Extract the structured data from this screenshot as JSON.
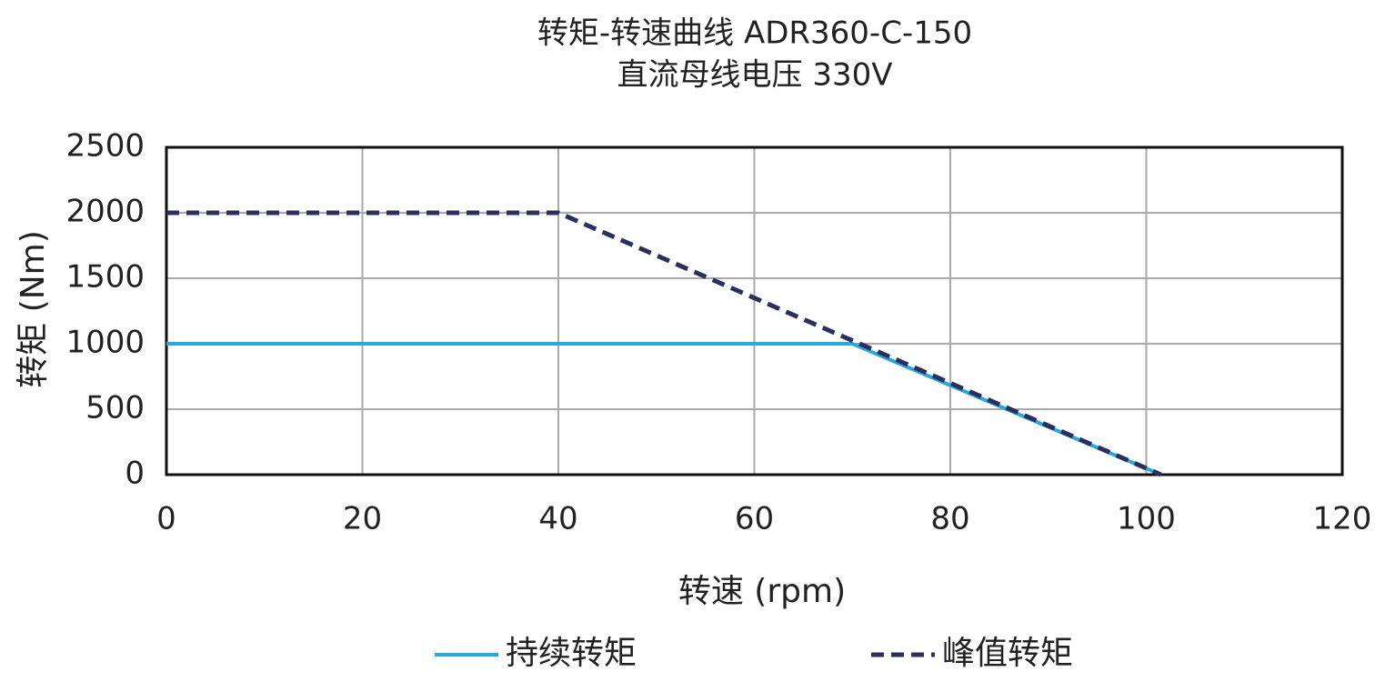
{
  "chart_data": {
    "type": "line",
    "title": "转矩-转速曲线 ADR360-C-150",
    "subtitle": "直流母线电压 330V",
    "x_label": "转速 (rpm)",
    "y_label": "转矩 (Nm)",
    "xlim": [
      0,
      120
    ],
    "xticks": [
      0,
      20,
      40,
      60,
      80,
      100,
      120
    ],
    "ylim": [
      0,
      2500
    ],
    "yticks": [
      0,
      500,
      1000,
      1500,
      2000,
      2500
    ],
    "grid": true,
    "legend": "bottom",
    "series": [
      {
        "name": "持续转矩",
        "color": "#29a8dc",
        "dash": false,
        "x": [
          0,
          70,
          101.5
        ],
        "values": [
          1000,
          1000,
          0
        ]
      },
      {
        "name": "峰值转矩",
        "color": "#2b2f5e",
        "dash": true,
        "x": [
          0,
          40,
          101.5
        ],
        "values": [
          2000,
          2000,
          0
        ]
      }
    ]
  }
}
